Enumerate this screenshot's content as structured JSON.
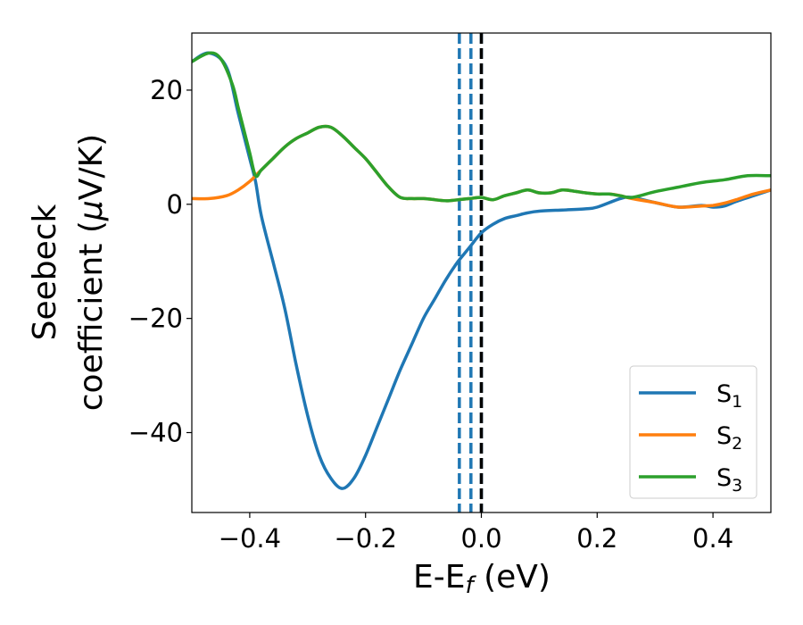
{
  "chart_data": {
    "type": "line",
    "xlabel": "E-E",
    "xlabel_sub": "f",
    "xlabel_unit": " (eV)",
    "ylabel_line1": "Seebeck",
    "ylabel_line2_pre": "coefficient  (",
    "ylabel_mu": "μ",
    "ylabel_line2_post": "V/K)",
    "xlim": [
      -0.5,
      0.5
    ],
    "ylim": [
      -54,
      30
    ],
    "xticks": [
      -0.4,
      -0.2,
      0.0,
      0.2,
      0.4
    ],
    "xtick_labels": [
      "−0.4",
      "−0.2",
      "0.0",
      "0.2",
      "0.4"
    ],
    "yticks": [
      -40,
      -20,
      0,
      20
    ],
    "ytick_labels": [
      "−40",
      "−20",
      "0",
      "20"
    ],
    "grid": false,
    "legend_position": "bottom-right",
    "vlines": [
      {
        "x": -0.038,
        "style": "dashed",
        "color": "#1f77b4"
      },
      {
        "x": -0.018,
        "style": "dashed",
        "color": "#1f77b4"
      },
      {
        "x": 0.0,
        "style": "dashed",
        "color": "#1f77b4"
      },
      {
        "x": 0.0,
        "style": "dashed",
        "color": "#000000"
      }
    ],
    "series": [
      {
        "name": "S",
        "sub": "1",
        "color": "#1f77b4",
        "x": [
          -0.5,
          -0.47,
          -0.44,
          -0.42,
          -0.4,
          -0.39,
          -0.38,
          -0.36,
          -0.34,
          -0.32,
          -0.3,
          -0.28,
          -0.26,
          -0.24,
          -0.22,
          -0.2,
          -0.18,
          -0.16,
          -0.14,
          -0.12,
          -0.1,
          -0.08,
          -0.06,
          -0.04,
          -0.02,
          0.0,
          0.02,
          0.04,
          0.06,
          0.08,
          0.1,
          0.14,
          0.18,
          0.2,
          0.24,
          0.26,
          0.3,
          0.34,
          0.38,
          0.4,
          0.42,
          0.44,
          0.47,
          0.5
        ],
        "y": [
          25,
          26.5,
          24,
          16,
          8,
          4,
          -2,
          -10,
          -18,
          -28,
          -37,
          -44,
          -48,
          -49.8,
          -48,
          -44,
          -39,
          -34,
          -29,
          -24.5,
          -20,
          -16.5,
          -13,
          -10,
          -7.5,
          -5,
          -3.5,
          -2.5,
          -2,
          -1.5,
          -1.2,
          -1,
          -0.8,
          -0.5,
          1,
          1.2,
          0.3,
          -0.5,
          -0.2,
          -0.5,
          -0.3,
          0.5,
          1.5,
          2.5
        ]
      },
      {
        "name": "S",
        "sub": "2",
        "color": "#ff7f0e",
        "x": [
          -0.5,
          -0.47,
          -0.44,
          -0.42,
          -0.4,
          -0.39,
          -0.38,
          -0.36,
          -0.34,
          -0.32,
          -0.3,
          -0.28,
          -0.26,
          -0.24,
          -0.22,
          -0.2,
          -0.18,
          -0.16,
          -0.14,
          -0.12,
          -0.1,
          -0.08,
          -0.06,
          -0.04,
          -0.02,
          0.0,
          0.02,
          0.04,
          0.06,
          0.08,
          0.1,
          0.12,
          0.14,
          0.16,
          0.18,
          0.2,
          0.22,
          0.24,
          0.26,
          0.3,
          0.34,
          0.38,
          0.4,
          0.42,
          0.44,
          0.47,
          0.5
        ],
        "y": [
          1,
          1,
          1.5,
          2.5,
          4,
          5,
          6,
          8,
          10,
          11.5,
          12.5,
          13.5,
          13.5,
          12,
          10,
          8,
          5.5,
          3,
          1.2,
          1,
          1,
          0.8,
          0.6,
          0.8,
          1,
          1.2,
          0.8,
          1.5,
          2,
          2.5,
          2,
          2,
          2.5,
          2.3,
          2,
          1.8,
          1.8,
          1.5,
          1,
          0.3,
          -0.5,
          -0.3,
          -0.2,
          0.2,
          0.8,
          1.8,
          2.5
        ]
      },
      {
        "name": "S",
        "sub": "3",
        "color": "#2ca02c",
        "x": [
          -0.5,
          -0.47,
          -0.45,
          -0.43,
          -0.42,
          -0.41,
          -0.4,
          -0.39,
          -0.38,
          -0.36,
          -0.34,
          -0.32,
          -0.3,
          -0.28,
          -0.26,
          -0.24,
          -0.22,
          -0.2,
          -0.18,
          -0.16,
          -0.14,
          -0.12,
          -0.1,
          -0.08,
          -0.06,
          -0.04,
          -0.02,
          0.0,
          0.02,
          0.04,
          0.06,
          0.08,
          0.1,
          0.12,
          0.14,
          0.16,
          0.18,
          0.2,
          0.22,
          0.24,
          0.26,
          0.3,
          0.34,
          0.38,
          0.42,
          0.46,
          0.5
        ],
        "y": [
          25,
          26.5,
          25.5,
          21,
          17,
          13,
          9,
          5,
          6,
          8,
          10,
          11.5,
          12.5,
          13.5,
          13.5,
          12,
          10,
          8,
          5.5,
          3,
          1.2,
          1,
          1,
          0.8,
          0.6,
          0.8,
          1,
          1.2,
          0.8,
          1.5,
          2,
          2.5,
          2,
          2,
          2.5,
          2.3,
          2,
          1.8,
          1.8,
          1.5,
          1.2,
          2.2,
          3,
          3.8,
          4.3,
          5,
          5
        ]
      }
    ]
  }
}
